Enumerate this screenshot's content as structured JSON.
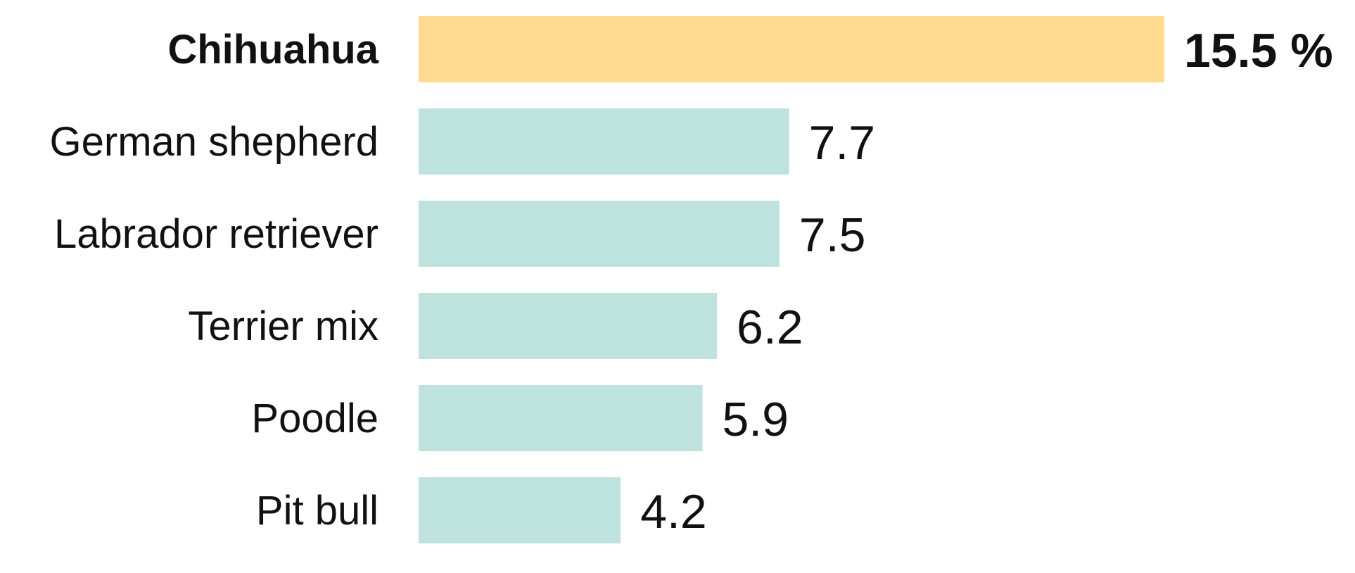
{
  "chart_data": {
    "type": "bar",
    "orientation": "horizontal",
    "categories": [
      "Chihuahua",
      "German shepherd",
      "Labrador retriever",
      "Terrier mix",
      "Poodle",
      "Pit bull"
    ],
    "values": [
      15.5,
      7.7,
      7.5,
      6.2,
      5.9,
      4.2
    ],
    "value_labels": [
      "15.5 %",
      "7.7",
      "7.5",
      "6.2",
      "5.9",
      "4.2"
    ],
    "highlight_index": 0,
    "xlim": [
      0,
      15.5
    ],
    "grid": false,
    "colors": {
      "highlight": "#FFDA8F",
      "default": "#BEE3DF"
    }
  }
}
